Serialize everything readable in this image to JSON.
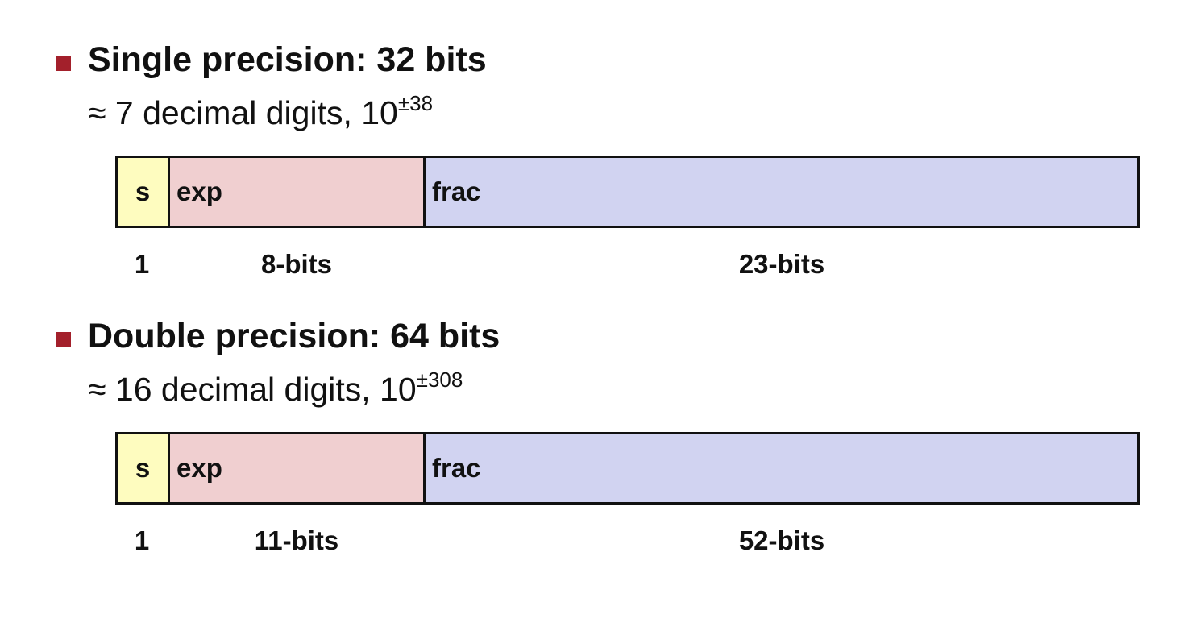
{
  "formats": [
    {
      "heading": "Single precision: 32 bits",
      "subline_prefix": "≈ 7 decimal digits, 10",
      "subline_exponent": "±38",
      "fields": {
        "s": "s",
        "exp": "exp",
        "frac": "frac"
      },
      "bit_labels": {
        "s": "1",
        "exp": "8-bits",
        "frac": "23-bits"
      }
    },
    {
      "heading": "Double precision: 64 bits",
      "subline_prefix": "≈ 16 decimal digits, 10",
      "subline_exponent": "±308",
      "fields": {
        "s": "s",
        "exp": "exp",
        "frac": "frac"
      },
      "bit_labels": {
        "s": "1",
        "exp": "11-bits",
        "frac": "52-bits"
      }
    }
  ],
  "colors": {
    "bullet": "#a3202b",
    "sign_field": "#fefcbf",
    "exp_field": "#f0cfd0",
    "frac_field": "#d1d3f1",
    "border": "#111111"
  }
}
